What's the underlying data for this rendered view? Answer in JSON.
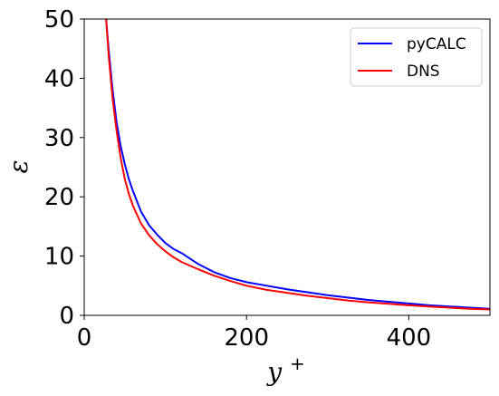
{
  "chart_data": {
    "type": "line",
    "xlabel": "y",
    "xlabel_superscript": "+",
    "ylabel": "ε",
    "xlim": [
      0,
      500
    ],
    "ylim": [
      0,
      50
    ],
    "x_ticks": [
      0,
      200,
      400
    ],
    "y_ticks": [
      0,
      10,
      20,
      30,
      40,
      50
    ],
    "grid": false,
    "legend_position": "top-right",
    "series": [
      {
        "name": "pyCALC",
        "color": "#0000ff",
        "x": [
          27,
          30,
          35,
          40,
          45,
          50,
          55,
          60,
          70,
          80,
          90,
          100,
          110,
          120,
          140,
          160,
          180,
          200,
          225,
          250,
          275,
          300,
          325,
          350,
          375,
          400,
          425,
          450,
          475,
          500
        ],
        "y": [
          50,
          45,
          38,
          32.5,
          28.5,
          25.5,
          23,
          21,
          17.5,
          15.2,
          13.6,
          12.2,
          11.2,
          10.5,
          8.7,
          7.3,
          6.3,
          5.6,
          5.0,
          4.4,
          3.9,
          3.4,
          3.0,
          2.6,
          2.3,
          2.0,
          1.7,
          1.5,
          1.3,
          1.1
        ]
      },
      {
        "name": "DNS",
        "color": "#ff0000",
        "x": [
          27,
          30,
          35,
          40,
          45,
          50,
          55,
          60,
          70,
          80,
          90,
          100,
          110,
          120,
          140,
          160,
          180,
          200,
          225,
          250,
          275,
          300,
          325,
          350,
          375,
          400,
          425,
          450,
          475,
          500
        ],
        "y": [
          50,
          44,
          36.5,
          31,
          26.5,
          23,
          20.5,
          18.5,
          15.5,
          13.5,
          12.0,
          10.8,
          9.8,
          9.0,
          7.8,
          6.7,
          5.8,
          5.0,
          4.3,
          3.8,
          3.3,
          2.9,
          2.5,
          2.2,
          1.95,
          1.7,
          1.5,
          1.3,
          1.1,
          1.0
        ]
      }
    ]
  }
}
